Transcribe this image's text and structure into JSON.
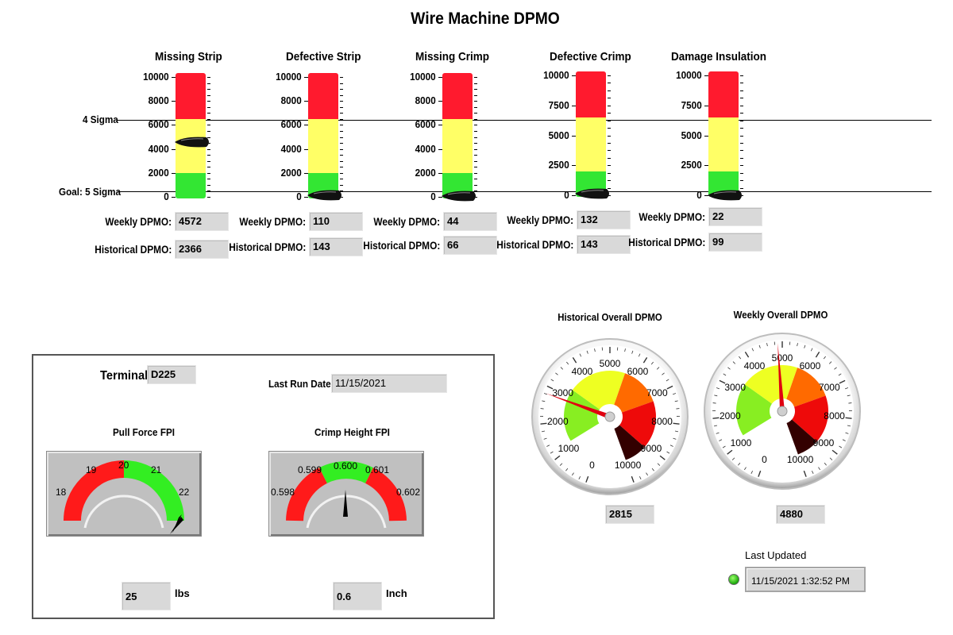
{
  "title": "Wire Machine DPMO",
  "reference_lines": {
    "upper": "4 Sigma",
    "lower": "Goal: 5 Sigma"
  },
  "labels": {
    "weekly": "Weekly DPMO:",
    "historical": "Historical DPMO:"
  },
  "categories": [
    {
      "name": "Missing Strip",
      "ticks": [
        "10000",
        "8000",
        "6000",
        "4000",
        "2000",
        "0"
      ],
      "weekly": "4572",
      "historical": "2366",
      "pointer": 4572
    },
    {
      "name": "Defective Strip",
      "ticks": [
        "10000",
        "8000",
        "6000",
        "4000",
        "2000",
        "0"
      ],
      "weekly": "110",
      "historical": "143",
      "pointer": 110
    },
    {
      "name": "Missing Crimp",
      "ticks": [
        "10000",
        "8000",
        "6000",
        "4000",
        "2000",
        "0"
      ],
      "weekly": "44",
      "historical": "66",
      "pointer": 44
    },
    {
      "name": "Defective Crimp",
      "ticks": [
        "10000",
        "7500",
        "5000",
        "2500",
        "0"
      ],
      "weekly": "132",
      "historical": "143",
      "pointer": 132
    },
    {
      "name": "Damage Insulation",
      "ticks": [
        "10000",
        "7500",
        "5000",
        "2500",
        "0"
      ],
      "weekly": "22",
      "historical": "99",
      "pointer": 22
    }
  ],
  "panel": {
    "terminal_label": "Terminal",
    "terminal_value": "D225",
    "last_run_label": "Last Run Date:",
    "last_run_value": "11/15/2021",
    "pull_force": {
      "title": "Pull Force FPI",
      "ticks": [
        "18",
        "19",
        "20",
        "21",
        "22"
      ],
      "value": "25",
      "unit": "lbs"
    },
    "crimp_height": {
      "title": "Crimp Height FPI",
      "ticks": [
        "0.598",
        "0.599",
        "0.600",
        "0.601",
        "0.602"
      ],
      "value": "0.6",
      "unit": "Inch"
    }
  },
  "dials": [
    {
      "title": "Historical Overall DPMO",
      "ticks": [
        "0",
        "1000",
        "2000",
        "3000",
        "4000",
        "5000",
        "6000",
        "7000",
        "8000",
        "9000",
        "10000"
      ],
      "value": "2815",
      "needle": 2815
    },
    {
      "title": "Weekly Overall DPMO",
      "ticks": [
        "0",
        "1000",
        "2000",
        "3000",
        "4000",
        "5000",
        "6000",
        "7000",
        "8000",
        "9000",
        "10000"
      ],
      "value": "4880",
      "needle": 4880
    }
  ],
  "last_updated": {
    "label": "Last Updated",
    "value": "11/15/2021 1:32:52 PM"
  },
  "colors": {
    "red": "#ff1a2e",
    "yellow": "#ffff66",
    "green": "#33e633",
    "panel_gray": "#c0c0c0"
  }
}
